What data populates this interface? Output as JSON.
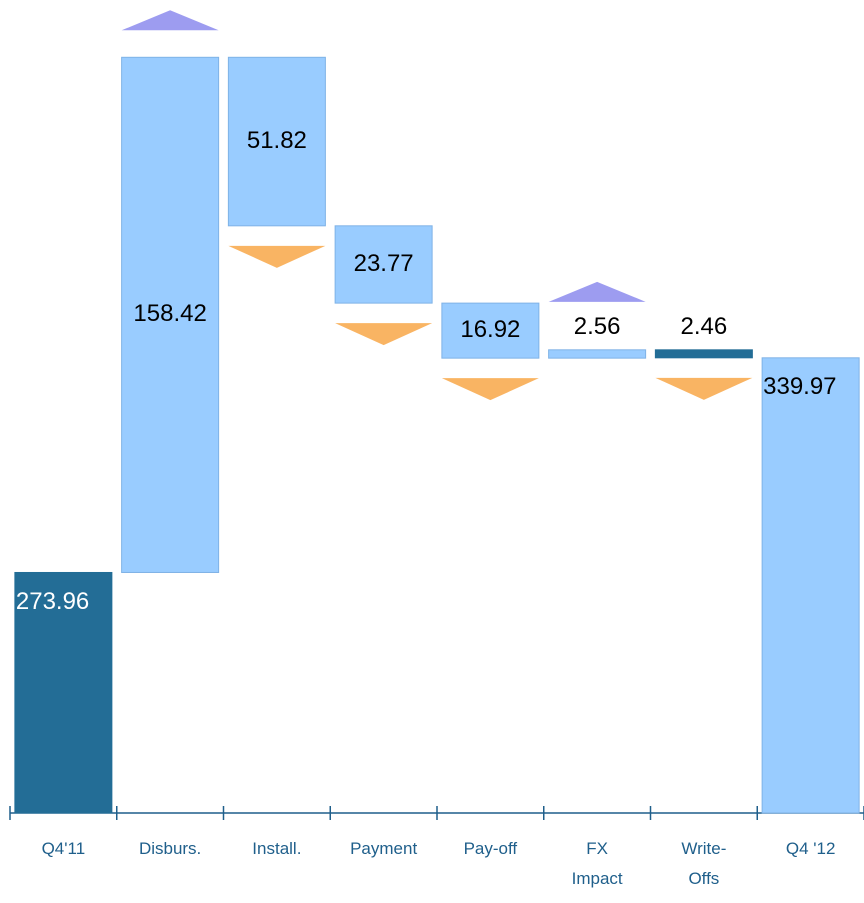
{
  "chart_data": {
    "type": "waterfall",
    "categories": [
      "Q4'11",
      "Disburs.",
      "Install.",
      "Payment",
      "Pay-off",
      "FX Impact",
      "Write-Offs",
      "Q4 '12"
    ],
    "values": [
      273.96,
      158.42,
      51.82,
      23.77,
      16.92,
      2.56,
      2.46,
      339.97
    ],
    "measure": [
      "total",
      "increase",
      "decrease",
      "decrease",
      "decrease",
      "increase",
      "decrease",
      "total"
    ],
    "colors": [
      "#236d96",
      "#99ccff",
      "#99ccff",
      "#99ccff",
      "#99ccff",
      "#99ccff",
      "#236d96",
      "#99ccff"
    ],
    "increase_marker_color": "#9d9cf0",
    "decrease_marker_color": "#f9b463",
    "ylim": [
      200,
      450
    ]
  }
}
